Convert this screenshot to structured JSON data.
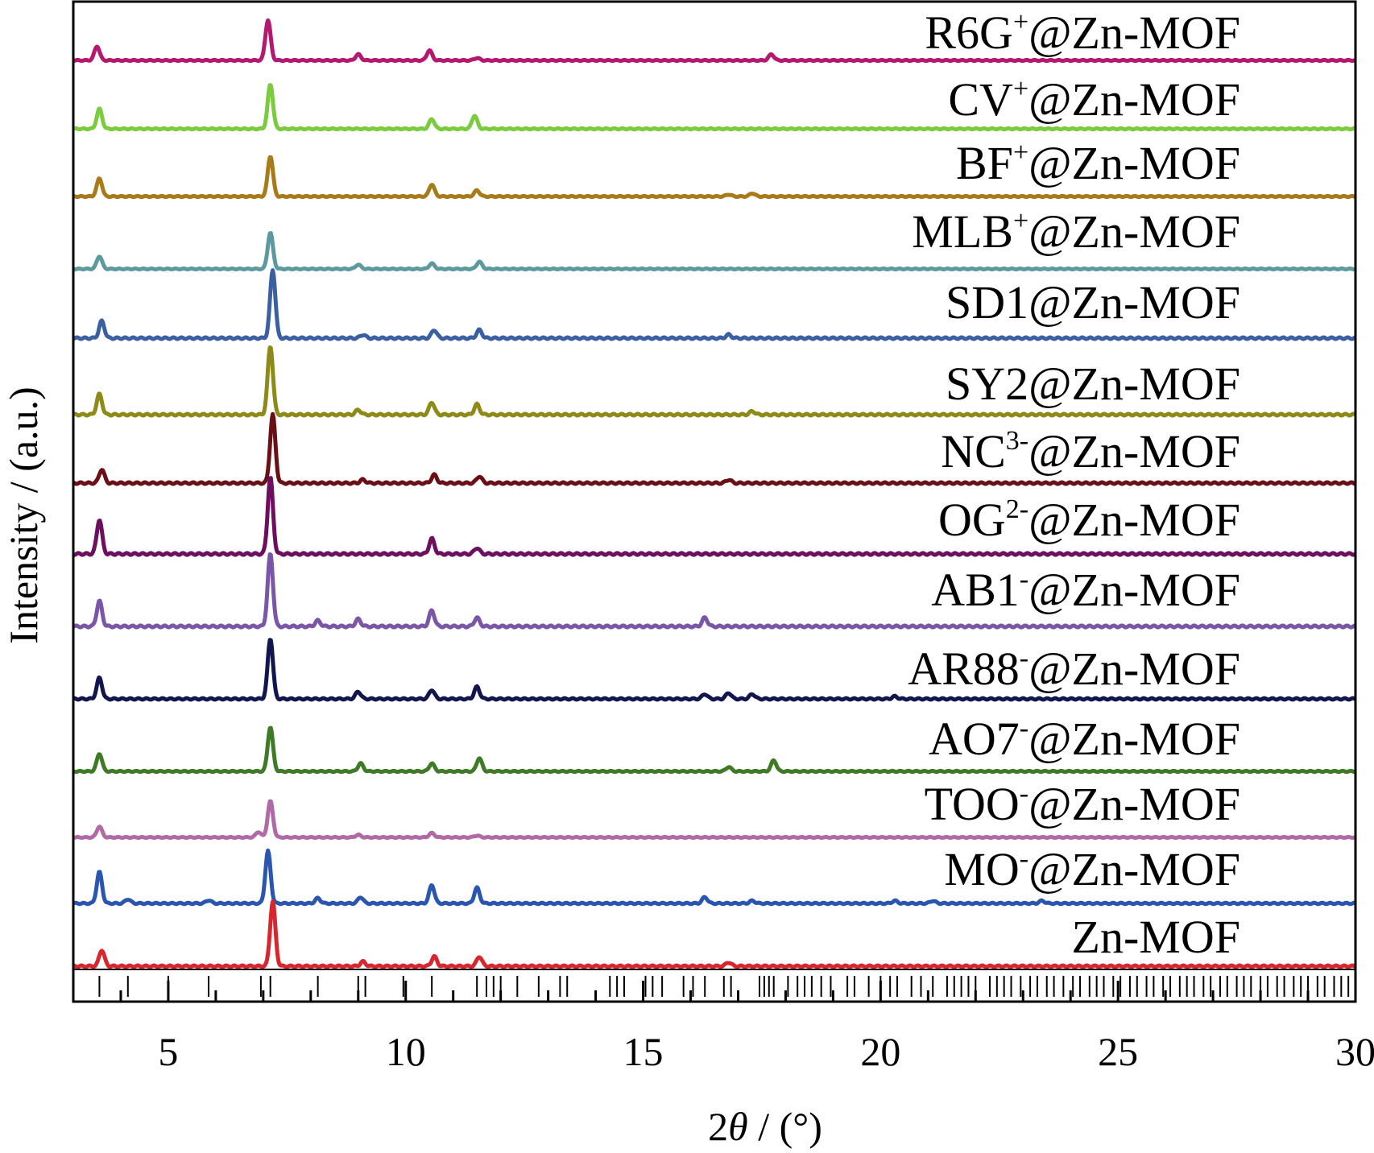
{
  "chart_data": {
    "type": "line",
    "title": "",
    "xlabel_prefix": "2",
    "xlabel_symbol": "θ",
    "xlabel_suffix": " / (°)",
    "ylabel": "Intensity / (a.u.)",
    "xlim": [
      3,
      30
    ],
    "xticks": [
      "5",
      "10",
      "15",
      "20",
      "25",
      "30"
    ],
    "xtick_values": [
      5,
      10,
      15,
      20,
      25,
      30
    ],
    "y_ticks_shown": false,
    "grid": false,
    "legend": "labels printed on each trace",
    "reference_ticks": [
      3.55,
      4.15,
      5.0,
      5.85,
      6.95,
      7.15,
      8.15,
      9.0,
      9.15,
      9.95,
      10.55,
      11.5,
      11.7,
      11.85,
      12.0,
      12.35,
      12.8,
      13.25,
      13.4,
      14.3,
      14.45,
      14.6,
      15.05,
      15.2,
      15.4,
      15.85,
      16.05,
      16.3,
      16.7,
      16.85,
      17.45,
      17.55,
      17.65,
      17.75,
      18.05,
      18.25,
      18.4,
      18.55,
      18.75,
      18.95,
      19.3,
      19.45,
      19.75,
      20.0,
      20.2,
      20.35,
      20.65,
      20.85,
      21.1,
      21.4,
      21.55,
      21.7,
      21.85,
      22.0,
      22.3,
      22.45,
      22.6,
      22.75,
      22.95,
      23.15,
      23.3,
      23.5,
      23.65,
      23.85,
      24.05,
      24.2,
      24.4,
      24.55,
      24.7,
      24.9,
      25.05,
      25.25,
      25.4,
      25.6,
      25.75,
      25.95,
      26.1,
      26.3,
      26.45,
      26.6,
      26.8,
      26.95,
      27.15,
      27.3,
      27.5,
      27.65,
      27.8,
      28.0,
      28.15,
      28.35,
      28.5,
      28.7,
      28.85,
      29.0,
      29.2,
      29.35,
      29.55,
      29.7,
      29.85
    ],
    "series": [
      {
        "name": "R6G",
        "sup": "+",
        "tail": "@Zn-MOF",
        "color": "#B5186F",
        "peaks": [
          [
            3.5,
            0.35
          ],
          [
            7.1,
            1.0
          ],
          [
            9.0,
            0.15
          ],
          [
            10.5,
            0.25
          ],
          [
            11.5,
            0.06
          ],
          [
            17.7,
            0.15
          ]
        ]
      },
      {
        "name": "CV",
        "sup": "+",
        "tail": "@Zn-MOF",
        "color": "#7ACB3D",
        "peaks": [
          [
            3.55,
            0.45
          ],
          [
            7.15,
            1.0
          ],
          [
            10.55,
            0.22
          ],
          [
            11.45,
            0.3
          ]
        ]
      },
      {
        "name": "BF",
        "sup": "+",
        "tail": "@Zn-MOF",
        "color": "#A87A18",
        "peaks": [
          [
            3.55,
            0.45
          ],
          [
            7.15,
            1.0
          ],
          [
            10.55,
            0.3
          ],
          [
            11.5,
            0.15
          ],
          [
            16.8,
            0.05
          ],
          [
            17.3,
            0.08
          ]
        ]
      },
      {
        "name": "MLB",
        "sup": "+",
        "tail": "@Zn-MOF",
        "color": "#5C9AA0",
        "peaks": [
          [
            3.55,
            0.35
          ],
          [
            7.15,
            1.0
          ],
          [
            9.0,
            0.12
          ],
          [
            10.55,
            0.15
          ],
          [
            11.55,
            0.2
          ]
        ]
      },
      {
        "name": "SD1",
        "sup": "",
        "tail": "@Zn-MOF",
        "color": "#3B5FA3",
        "peaks": [
          [
            3.6,
            0.25
          ],
          [
            7.2,
            1.0
          ],
          [
            9.1,
            0.05
          ],
          [
            10.6,
            0.12
          ],
          [
            11.55,
            0.12
          ],
          [
            16.8,
            0.05
          ]
        ]
      },
      {
        "name": "SY2",
        "sup": "",
        "tail": "@Zn-MOF",
        "color": "#8D8A18",
        "peaks": [
          [
            3.55,
            0.3
          ],
          [
            7.15,
            1.0
          ],
          [
            9.0,
            0.07
          ],
          [
            10.55,
            0.18
          ],
          [
            11.5,
            0.15
          ],
          [
            17.3,
            0.05
          ]
        ]
      },
      {
        "name": "NC",
        "sup": "3-",
        "tail": "@Zn-MOF",
        "color": "#6B0F16",
        "peaks": [
          [
            3.6,
            0.2
          ],
          [
            7.2,
            1.0
          ],
          [
            9.1,
            0.05
          ],
          [
            10.6,
            0.12
          ],
          [
            11.55,
            0.1
          ],
          [
            16.8,
            0.05
          ]
        ]
      },
      {
        "name": "OG",
        "sup": "2-",
        "tail": "@Zn-MOF",
        "color": "#6E0E5E",
        "peaks": [
          [
            3.55,
            0.45
          ],
          [
            7.15,
            1.0
          ],
          [
            10.55,
            0.2
          ],
          [
            11.5,
            0.08
          ]
        ]
      },
      {
        "name": "AB1",
        "sup": "-",
        "tail": "@Zn-MOF",
        "color": "#7A55A8",
        "peaks": [
          [
            3.55,
            0.35
          ],
          [
            7.15,
            1.0
          ],
          [
            8.15,
            0.08
          ],
          [
            9.0,
            0.1
          ],
          [
            10.55,
            0.22
          ],
          [
            11.5,
            0.12
          ],
          [
            16.3,
            0.12
          ]
        ]
      },
      {
        "name": "AR88",
        "sup": "-",
        "tail": "@Zn-MOF",
        "color": "#12154E",
        "peaks": [
          [
            3.55,
            0.35
          ],
          [
            7.15,
            1.0
          ],
          [
            9.0,
            0.12
          ],
          [
            10.55,
            0.15
          ],
          [
            11.5,
            0.2
          ],
          [
            16.3,
            0.08
          ],
          [
            16.8,
            0.1
          ],
          [
            17.3,
            0.08
          ],
          [
            20.3,
            0.04
          ]
        ]
      },
      {
        "name": "AO7",
        "sup": "-",
        "tail": "@Zn-MOF",
        "color": "#3F7A26",
        "peaks": [
          [
            3.55,
            0.4
          ],
          [
            7.15,
            1.0
          ],
          [
            9.05,
            0.18
          ],
          [
            10.55,
            0.18
          ],
          [
            11.55,
            0.3
          ],
          [
            16.8,
            0.1
          ],
          [
            17.75,
            0.25
          ]
        ]
      },
      {
        "name": "TOO",
        "sup": "-",
        "tail": "@Zn-MOF",
        "color": "#B26AA6",
        "peaks": [
          [
            3.55,
            0.3
          ],
          [
            6.9,
            0.15
          ],
          [
            7.15,
            1.0
          ],
          [
            9.0,
            0.07
          ],
          [
            10.55,
            0.12
          ],
          [
            11.5,
            0.05
          ]
        ]
      },
      {
        "name": "MO",
        "sup": "-",
        "tail": "@Zn-MOF",
        "color": "#2A56B2",
        "peaks": [
          [
            3.55,
            0.6
          ],
          [
            4.15,
            0.08
          ],
          [
            5.85,
            0.06
          ],
          [
            7.1,
            1.0
          ],
          [
            8.15,
            0.1
          ],
          [
            9.05,
            0.12
          ],
          [
            10.55,
            0.35
          ],
          [
            11.5,
            0.3
          ],
          [
            16.3,
            0.12
          ],
          [
            17.3,
            0.05
          ],
          [
            20.3,
            0.05
          ],
          [
            21.1,
            0.05
          ],
          [
            23.4,
            0.05
          ]
        ]
      },
      {
        "name": "Zn-MOF",
        "sup": "",
        "tail": "",
        "color": "#D8262E",
        "peaks": [
          [
            3.6,
            0.25
          ],
          [
            7.2,
            1.0
          ],
          [
            9.1,
            0.07
          ],
          [
            10.6,
            0.15
          ],
          [
            11.55,
            0.15
          ],
          [
            16.8,
            0.06
          ]
        ]
      }
    ]
  }
}
